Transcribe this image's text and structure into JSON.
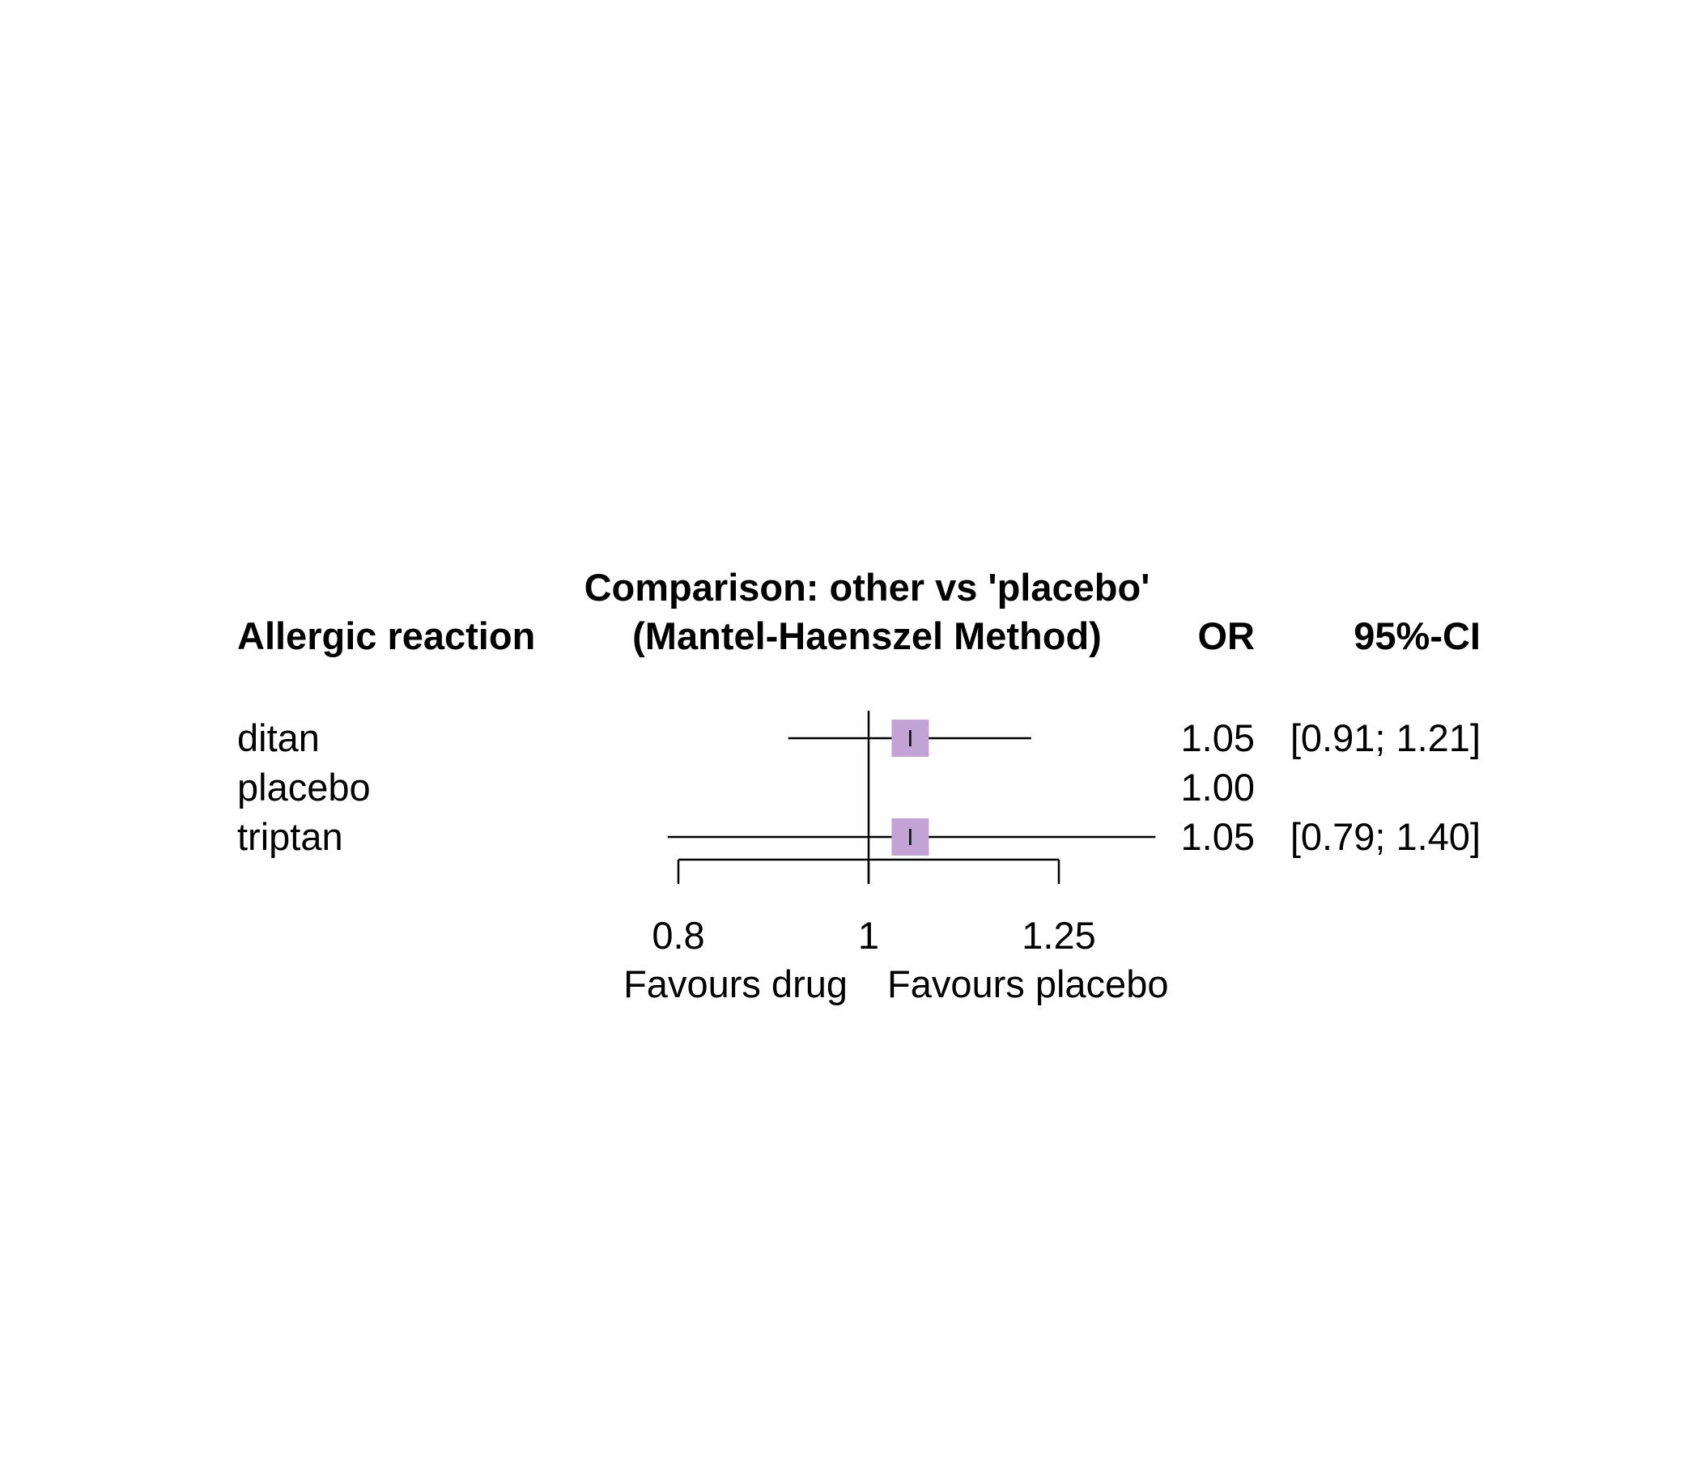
{
  "chart_data": {
    "type": "forest",
    "header": {
      "left": "Allergic reaction",
      "title_line1": "Comparison: other vs 'placebo'",
      "title_line2": "(Mantel-Haenszel Method)",
      "or": "OR",
      "ci": "95%-CI"
    },
    "rows": [
      {
        "label": "ditan",
        "or": 1.05,
        "ci_low": 0.91,
        "ci_high": 1.21,
        "or_text": "1.05",
        "ci_text": "[0.91; 1.21]",
        "has_marker": true
      },
      {
        "label": "placebo",
        "or": 1.0,
        "ci_low": null,
        "ci_high": null,
        "or_text": "1.00",
        "ci_text": "",
        "has_marker": false
      },
      {
        "label": "triptan",
        "or": 1.05,
        "ci_low": 0.79,
        "ci_high": 1.4,
        "or_text": "1.05",
        "ci_text": "[0.79; 1.40]",
        "has_marker": true
      }
    ],
    "x_scale": "log",
    "x_ticks": [
      0.8,
      1,
      1.25
    ],
    "x_tick_labels": [
      "0.8",
      "1",
      "1.25"
    ],
    "x_range": [
      0.8,
      1.25
    ],
    "reference_value": 1,
    "favours_left": "Favours drug",
    "favours_right": "Favours placebo",
    "marker_color": "#c3a2d6"
  }
}
